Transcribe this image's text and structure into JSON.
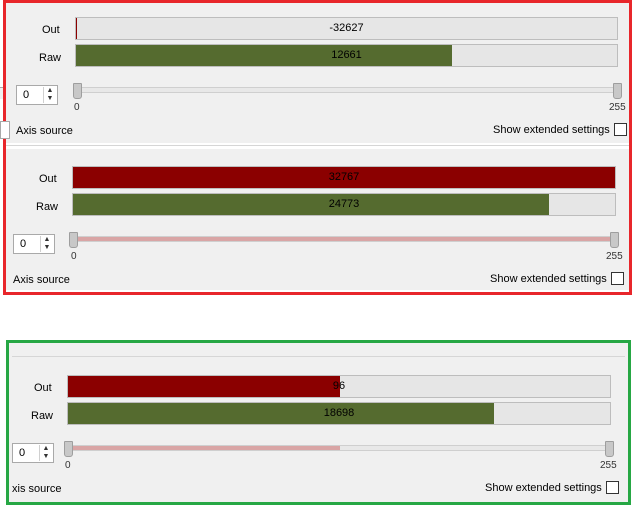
{
  "colors": {
    "red_frame": "#e8262b",
    "green_frame": "#26a744",
    "out_fill": "#8b0000",
    "raw_fill": "#556b2f"
  },
  "panels": [
    {
      "out_label": "Out",
      "raw_label": "Raw",
      "out_value": "-32627",
      "raw_value": "12661",
      "out_fraction": 0.0,
      "raw_fraction": 0.69,
      "deadzone_value": "0",
      "slider_min": "0",
      "slider_max": "255",
      "slider_fill_fraction": 0.0,
      "axis_source_label": "Axis source",
      "show_extended_label": "Show extended settings"
    },
    {
      "out_label": "Out",
      "raw_label": "Raw",
      "out_value": "32767",
      "raw_value": "24773",
      "out_fraction": 1.0,
      "raw_fraction": 0.88,
      "deadzone_value": "0",
      "slider_min": "0",
      "slider_max": "255",
      "slider_fill_fraction": 1.0,
      "axis_source_label": "Axis source",
      "show_extended_label": "Show extended settings"
    },
    {
      "out_label": "Out",
      "raw_label": "Raw",
      "out_value": "96",
      "raw_value": "18698",
      "out_fraction": 0.5,
      "raw_fraction": 0.78,
      "deadzone_value": "0",
      "slider_min": "0",
      "slider_max": "255",
      "slider_fill_fraction": 0.5,
      "axis_source_label": "xis source",
      "show_extended_label": "Show extended settings"
    }
  ]
}
